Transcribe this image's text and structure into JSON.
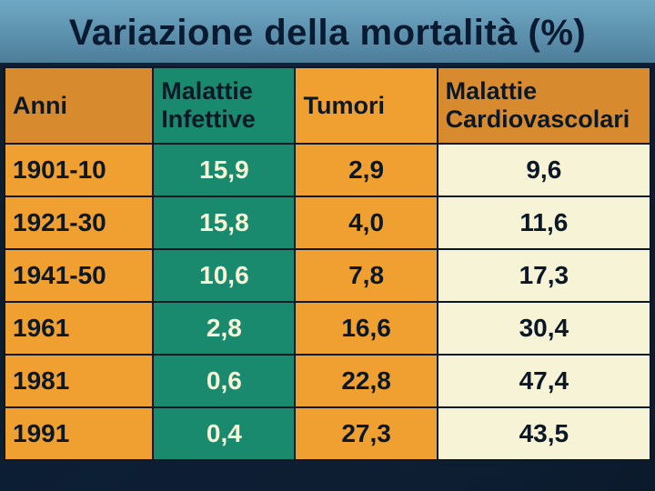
{
  "title": "Variazione della mortalità (%)",
  "table": {
    "type": "table",
    "background_color": "#0a1828",
    "border_color": "#0a1828",
    "title_fontsize": 40,
    "cell_fontsize": 28,
    "header_fontsize": 27,
    "font_family": "Comic Sans MS",
    "columns": [
      {
        "key": "anni",
        "label": "Anni",
        "header_bg": "#d88b2e",
        "cell_bg": "#f0a030",
        "text_color": "#0a1828",
        "align": "left",
        "width_pct": 23
      },
      {
        "key": "infettive",
        "label": "Malattie Infettive",
        "header_bg": "#1a8a6e",
        "cell_bg": "#1a8a6e",
        "text_color": "#f7f3d6",
        "align": "center",
        "width_pct": 22
      },
      {
        "key": "tumori",
        "label": "Tumori",
        "header_bg": "#f0a030",
        "cell_bg": "#f0a030",
        "text_color": "#0a1828",
        "align": "center",
        "width_pct": 22
      },
      {
        "key": "cardio",
        "label": "Malattie Cardiovascolari",
        "header_bg": "#d88b2e",
        "cell_bg": "#f7f3d6",
        "text_color": "#0a1828",
        "align": "center",
        "width_pct": 33
      }
    ],
    "rows": [
      {
        "anni": "1901-10",
        "infettive": "15,9",
        "tumori": "2,9",
        "cardio": "9,6"
      },
      {
        "anni": "1921-30",
        "infettive": "15,8",
        "tumori": "4,0",
        "cardio": "11,6"
      },
      {
        "anni": "1941-50",
        "infettive": "10,6",
        "tumori": "7,8",
        "cardio": "17,3"
      },
      {
        "anni": "1961",
        "infettive": "2,8",
        "tumori": "16,6",
        "cardio": "30,4"
      },
      {
        "anni": "1981",
        "infettive": "0,6",
        "tumori": "22,8",
        "cardio": "47,4"
      },
      {
        "anni": "1991",
        "infettive": "0,4",
        "tumori": "27,3",
        "cardio": "43,5"
      }
    ]
  }
}
